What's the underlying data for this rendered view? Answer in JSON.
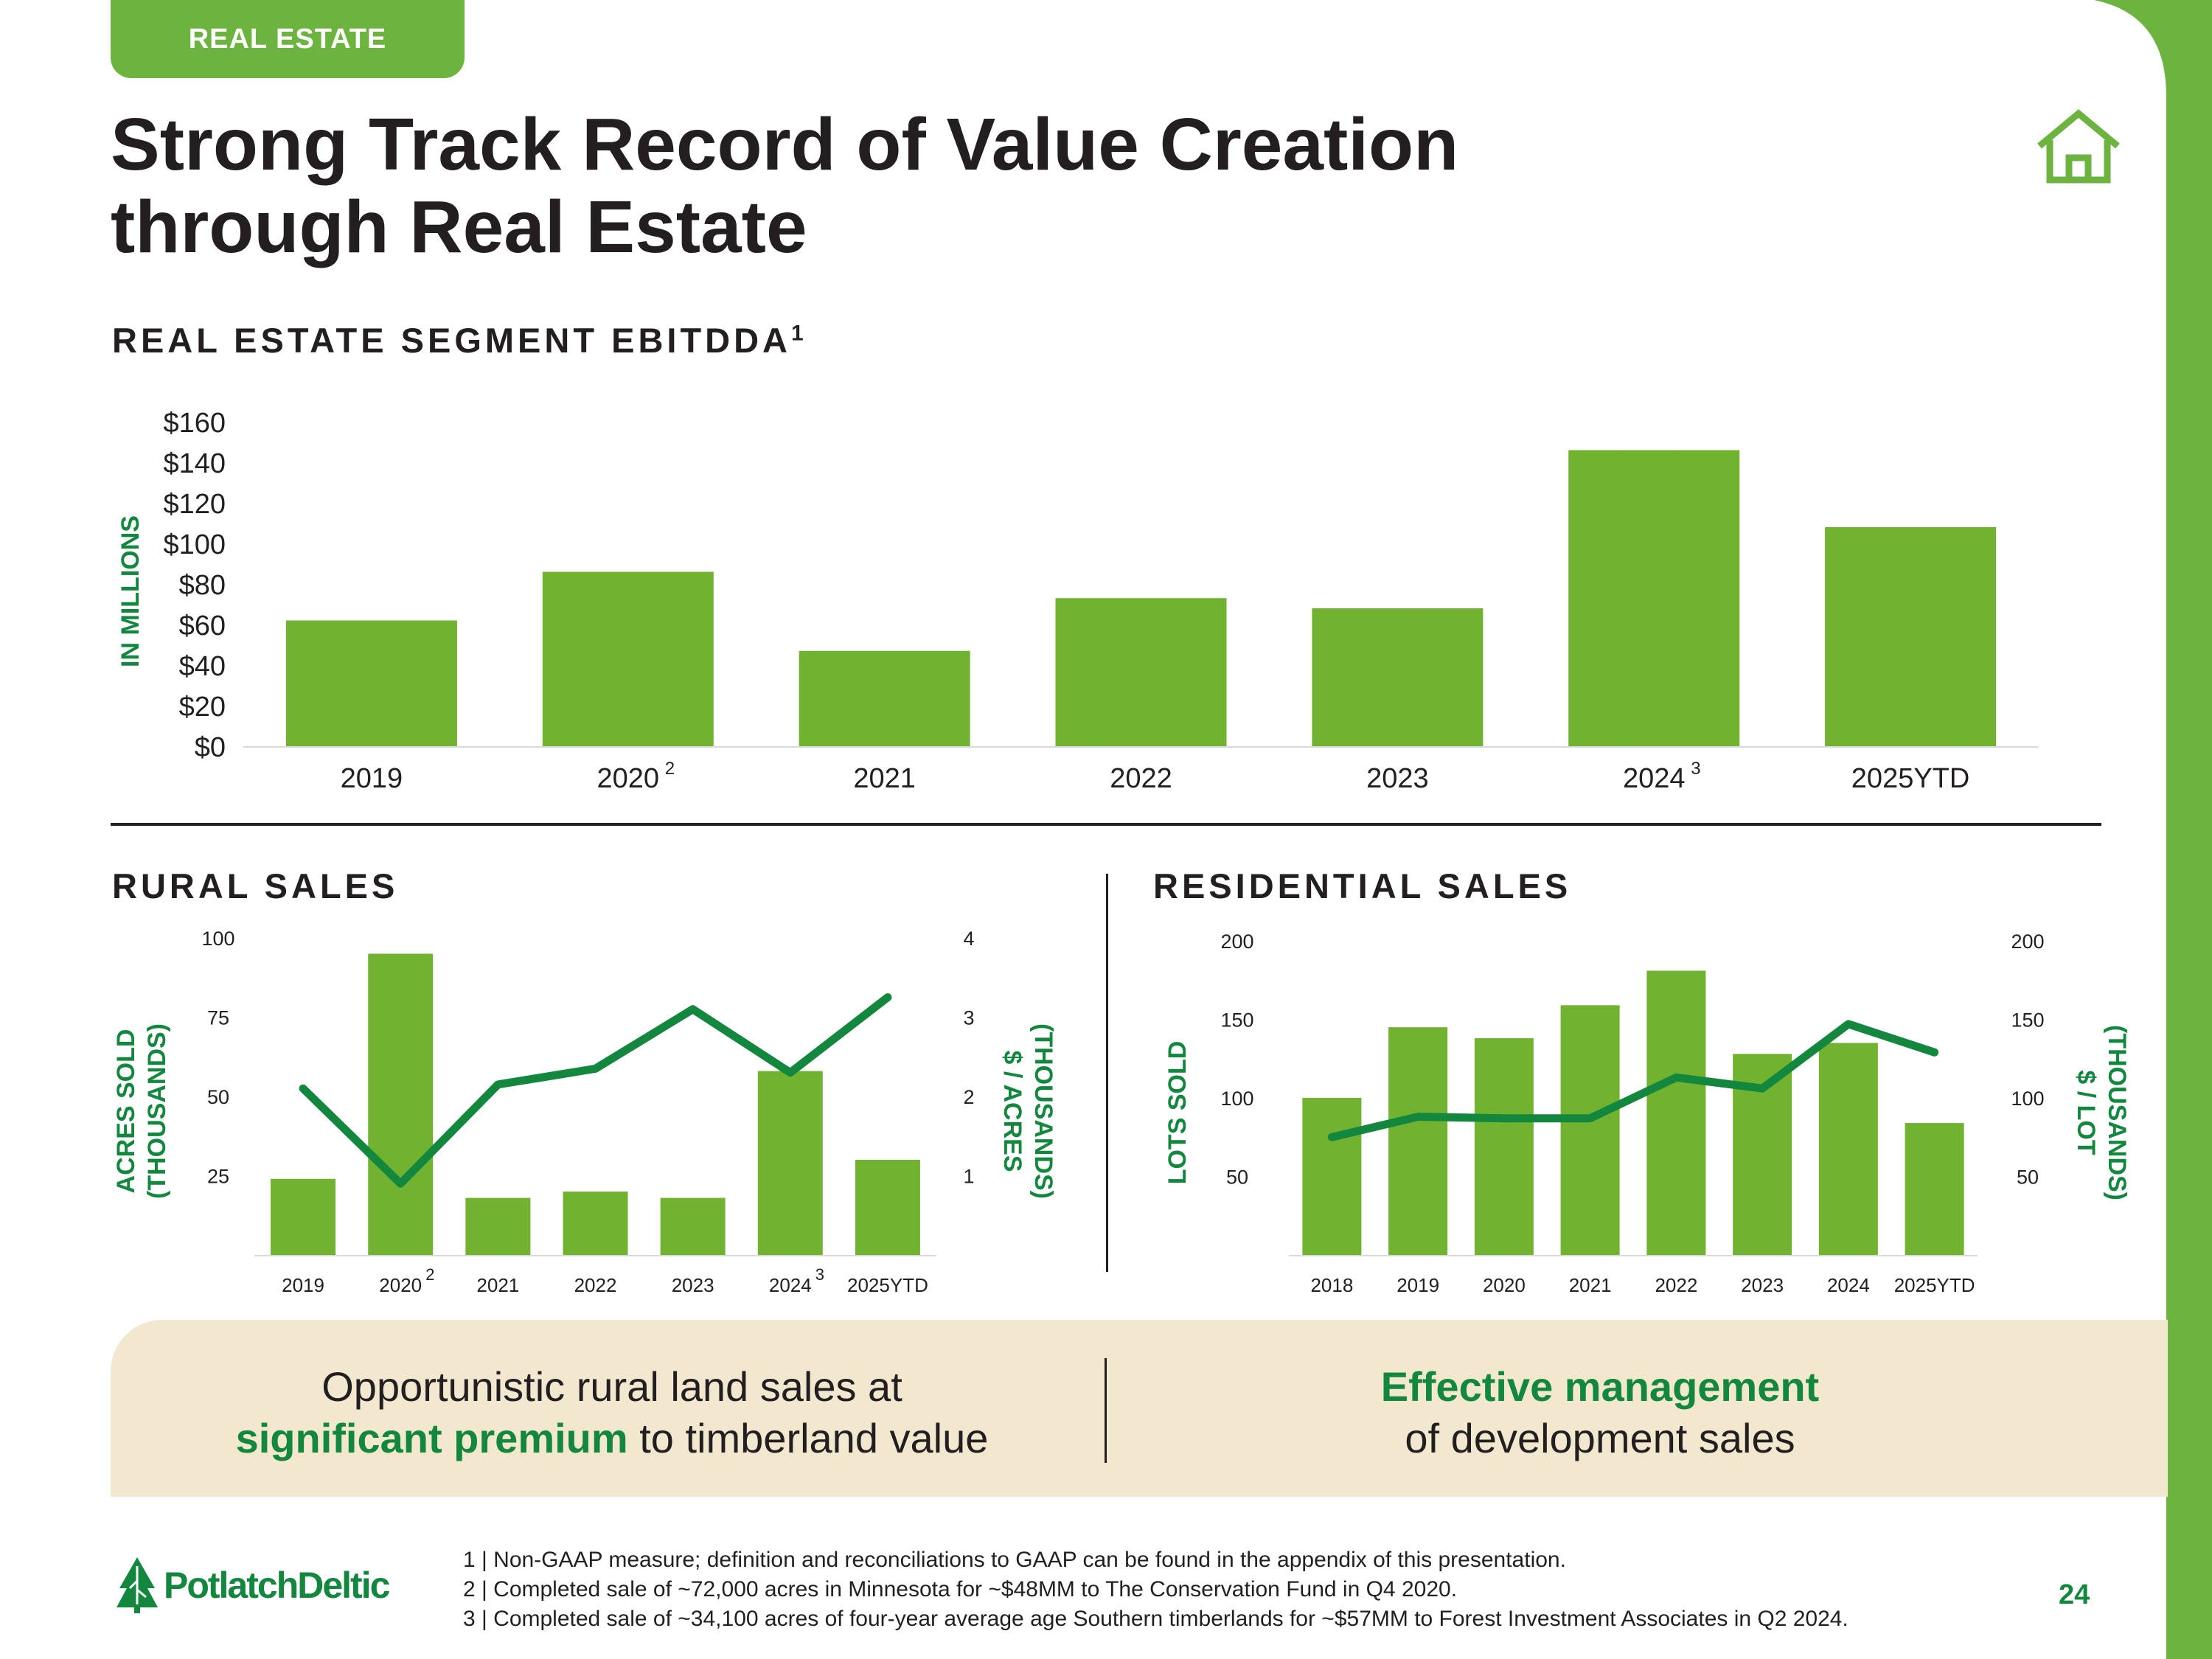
{
  "header": {
    "tag": "REAL ESTATE",
    "title_line1": "Strong Track Record of Value Creation",
    "title_line2": "through Real Estate",
    "icon": "house-icon"
  },
  "colors": {
    "brand_green": "#6db33f",
    "dark_green": "#14873e",
    "banner_bg": "#f1e8cf",
    "text": "#231f20"
  },
  "sections": {
    "ebitdda_title": "REAL ESTATE SEGMENT EBITDDA",
    "ebitdda_sup": "1",
    "rural_title": "RURAL SALES",
    "residential_title": "RESIDENTIAL SALES"
  },
  "chart_data": [
    {
      "id": "ebitdda",
      "type": "bar",
      "title": "REAL ESTATE SEGMENT EBITDDA",
      "ylabel": "IN MILLIONS",
      "categories": [
        "2019",
        "2020",
        "2021",
        "2022",
        "2023",
        "2024",
        "2025YTD"
      ],
      "category_sups": [
        "",
        "2",
        "",
        "",
        "",
        "3",
        ""
      ],
      "values": [
        62,
        86,
        47,
        73,
        68,
        146,
        108
      ],
      "ylim": [
        0,
        160
      ],
      "yticks": [
        0,
        20,
        40,
        60,
        80,
        100,
        120,
        140,
        160
      ],
      "ytick_labels": [
        "$0",
        "$20",
        "$40",
        "$60",
        "$80",
        "$100",
        "$120",
        "$140",
        "$160"
      ]
    },
    {
      "id": "rural",
      "type": "bar",
      "title": "RURAL SALES",
      "categories": [
        "2019",
        "2020",
        "2021",
        "2022",
        "2023",
        "2024",
        "2025YTD"
      ],
      "category_sups": [
        "",
        "2",
        "",
        "",
        "",
        "3",
        ""
      ],
      "ylabel_left_line1": "ACRES SOLD",
      "ylabel_left_line2": "(THOUSANDS)",
      "ylabel_right_line1": "$ / ACRES",
      "ylabel_right_line2": "(THOUSANDS)",
      "series": [
        {
          "name": "Acres sold (thousands)",
          "type": "bar",
          "axis": "left",
          "values": [
            24,
            95,
            18,
            20,
            18,
            58,
            30
          ]
        },
        {
          "name": "$ / acre (thousands)",
          "type": "line",
          "axis": "right",
          "values": [
            2.1,
            0.9,
            2.15,
            2.35,
            3.1,
            2.3,
            3.25
          ]
        }
      ],
      "ylim_left": [
        0,
        100
      ],
      "yticks_left": [
        25,
        50,
        75,
        100
      ],
      "ylim_right": [
        0,
        4
      ],
      "yticks_right": [
        1,
        2,
        3,
        4
      ]
    },
    {
      "id": "residential",
      "type": "bar",
      "title": "RESIDENTIAL SALES",
      "categories": [
        "2018",
        "2019",
        "2020",
        "2021",
        "2022",
        "2023",
        "2024",
        "2025YTD"
      ],
      "ylabel_left_line1": "LOTS SOLD",
      "ylabel_right_line1": "$ / LOT",
      "ylabel_right_line2": "(THOUSANDS)",
      "series": [
        {
          "name": "Lots sold",
          "type": "bar",
          "axis": "left",
          "values": [
            100,
            145,
            138,
            159,
            181,
            128,
            135,
            84
          ]
        },
        {
          "name": "$ / lot (thousands)",
          "type": "line",
          "axis": "right",
          "values": [
            75,
            88,
            87,
            87,
            113,
            106,
            147,
            129
          ]
        }
      ],
      "ylim_left": [
        0,
        200
      ],
      "yticks_left": [
        50,
        100,
        150,
        200
      ],
      "ylim_right": [
        0,
        200
      ],
      "yticks_right": [
        50,
        100,
        150,
        200
      ]
    }
  ],
  "banner": {
    "left_line1": "Opportunistic rural land sales at",
    "left_bold": "significant premium",
    "left_rest": " to timberland value",
    "right_bold": "Effective management",
    "right_line2": "of development sales"
  },
  "footnotes": [
    "1 | Non-GAAP measure; definition and reconciliations to GAAP can be found in the appendix of this presentation.",
    "2 | Completed sale of ~72,000 acres in Minnesota for ~$48MM to The Conservation Fund in Q4 2020.",
    "3 | Completed sale of ~34,100 acres of four-year average age Southern timberlands for ~$57MM to Forest Investment Associates in Q2 2024."
  ],
  "footer": {
    "logo_text": "PotlatchDeltic",
    "page_number": "24"
  }
}
